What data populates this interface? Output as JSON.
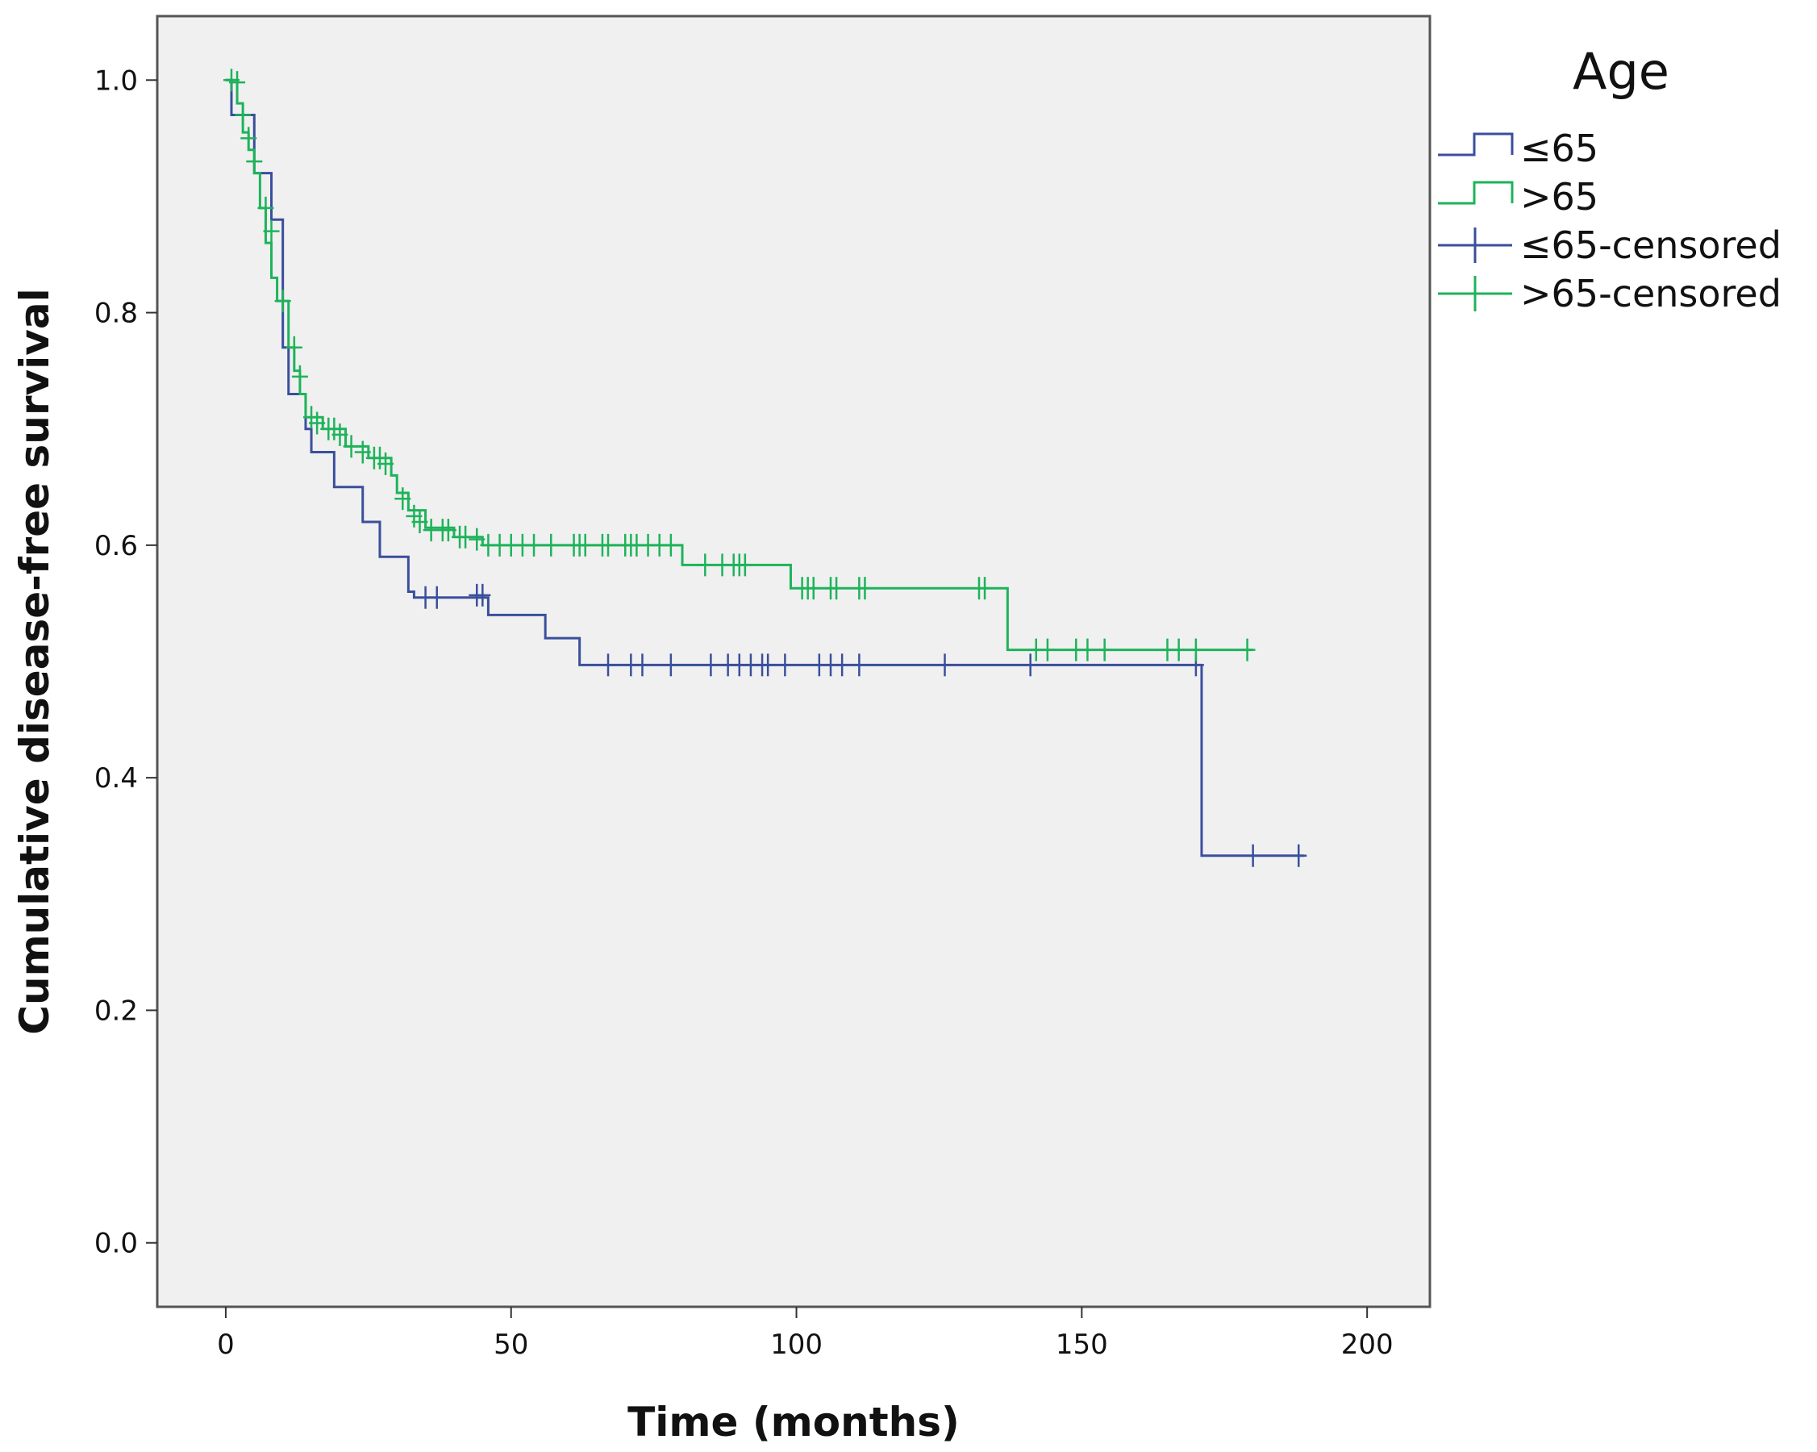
{
  "chart_data": {
    "type": "line",
    "subtype": "kaplan-meier step curves",
    "title": "",
    "xlabel": "Time (months)",
    "ylabel": "Cumulative disease-free survival",
    "xlim": [
      -12,
      211
    ],
    "ylim": [
      -0.055,
      1.055
    ],
    "x_ticks": [
      0,
      50,
      100,
      150,
      200
    ],
    "x_tick_labels": [
      "0",
      "50",
      "100",
      "150",
      "200"
    ],
    "y_ticks": [
      0.0,
      0.2,
      0.4,
      0.6,
      0.8,
      1.0
    ],
    "y_tick_labels": [
      "0.0",
      "0.2",
      "0.4",
      "0.6",
      "0.8",
      "1.0"
    ],
    "grid": false,
    "legend": {
      "title": "Age",
      "position": "right",
      "entries": [
        {
          "label": "≤65",
          "kind": "step",
          "color": "#3a4f9c"
        },
        {
          "label": ">65",
          "kind": "step",
          "color": "#1eb35a"
        },
        {
          "label": "≤65-censored",
          "kind": "censor",
          "color": "#3a4f9c"
        },
        {
          "label": ">65-censored",
          "kind": "censor",
          "color": "#1eb35a"
        }
      ]
    },
    "series": [
      {
        "name": "≤65",
        "color": "#3a4f9c",
        "steps": [
          [
            0,
            1.0
          ],
          [
            1,
            0.97
          ],
          [
            5,
            0.92
          ],
          [
            8,
            0.88
          ],
          [
            10,
            0.77
          ],
          [
            11,
            0.73
          ],
          [
            14,
            0.7
          ],
          [
            15,
            0.68
          ],
          [
            19,
            0.65
          ],
          [
            24,
            0.62
          ],
          [
            27,
            0.59
          ],
          [
            32,
            0.56
          ],
          [
            33,
            0.555
          ],
          [
            46,
            0.54
          ],
          [
            56,
            0.52
          ],
          [
            62,
            0.497
          ],
          [
            171,
            0.333
          ],
          [
            189,
            0.333
          ]
        ],
        "censored": [
          [
            35,
            0.555
          ],
          [
            37,
            0.555
          ],
          [
            44,
            0.557
          ],
          [
            45,
            0.557
          ],
          [
            67,
            0.497
          ],
          [
            71,
            0.497
          ],
          [
            73,
            0.497
          ],
          [
            78,
            0.497
          ],
          [
            85,
            0.497
          ],
          [
            88,
            0.497
          ],
          [
            90,
            0.497
          ],
          [
            92,
            0.497
          ],
          [
            94,
            0.497
          ],
          [
            95,
            0.497
          ],
          [
            98,
            0.497
          ],
          [
            104,
            0.497
          ],
          [
            106,
            0.497
          ],
          [
            108,
            0.497
          ],
          [
            111,
            0.497
          ],
          [
            126,
            0.497
          ],
          [
            141,
            0.497
          ],
          [
            170,
            0.497
          ],
          [
            180,
            0.333
          ],
          [
            188,
            0.333
          ]
        ]
      },
      {
        "name": ">65",
        "color": "#1eb35a",
        "steps": [
          [
            0,
            1.0
          ],
          [
            2,
            0.98
          ],
          [
            3,
            0.955
          ],
          [
            4,
            0.94
          ],
          [
            5,
            0.92
          ],
          [
            6,
            0.89
          ],
          [
            7,
            0.86
          ],
          [
            8,
            0.83
          ],
          [
            9,
            0.81
          ],
          [
            11,
            0.77
          ],
          [
            12,
            0.75
          ],
          [
            13,
            0.73
          ],
          [
            14,
            0.71
          ],
          [
            17,
            0.7
          ],
          [
            21,
            0.685
          ],
          [
            25,
            0.675
          ],
          [
            29,
            0.66
          ],
          [
            30,
            0.645
          ],
          [
            32,
            0.63
          ],
          [
            35,
            0.615
          ],
          [
            40,
            0.607
          ],
          [
            45,
            0.6
          ],
          [
            80,
            0.583
          ],
          [
            99,
            0.563
          ],
          [
            137,
            0.51
          ],
          [
            180,
            0.51
          ]
        ],
        "censored": [
          [
            1,
            1.0
          ],
          [
            2,
            0.998
          ],
          [
            3,
            0.97
          ],
          [
            4,
            0.95
          ],
          [
            5,
            0.93
          ],
          [
            7,
            0.89
          ],
          [
            8,
            0.87
          ],
          [
            10,
            0.81
          ],
          [
            12,
            0.77
          ],
          [
            13,
            0.745
          ],
          [
            15,
            0.71
          ],
          [
            16,
            0.705
          ],
          [
            18,
            0.7
          ],
          [
            19,
            0.7
          ],
          [
            20,
            0.695
          ],
          [
            22,
            0.685
          ],
          [
            24,
            0.68
          ],
          [
            26,
            0.675
          ],
          [
            27,
            0.675
          ],
          [
            28,
            0.67
          ],
          [
            31,
            0.64
          ],
          [
            33,
            0.625
          ],
          [
            34,
            0.62
          ],
          [
            36,
            0.613
          ],
          [
            38,
            0.613
          ],
          [
            39,
            0.613
          ],
          [
            41,
            0.607
          ],
          [
            42,
            0.607
          ],
          [
            44,
            0.605
          ],
          [
            46,
            0.6
          ],
          [
            48,
            0.6
          ],
          [
            50,
            0.6
          ],
          [
            52,
            0.6
          ],
          [
            54,
            0.6
          ],
          [
            57,
            0.6
          ],
          [
            61,
            0.6
          ],
          [
            62,
            0.6
          ],
          [
            63,
            0.6
          ],
          [
            66,
            0.6
          ],
          [
            67,
            0.6
          ],
          [
            70,
            0.6
          ],
          [
            71,
            0.6
          ],
          [
            72,
            0.6
          ],
          [
            74,
            0.6
          ],
          [
            76,
            0.6
          ],
          [
            78,
            0.6
          ],
          [
            84,
            0.583
          ],
          [
            87,
            0.583
          ],
          [
            89,
            0.583
          ],
          [
            90,
            0.583
          ],
          [
            91,
            0.583
          ],
          [
            101,
            0.563
          ],
          [
            102,
            0.563
          ],
          [
            103,
            0.563
          ],
          [
            106,
            0.563
          ],
          [
            107,
            0.563
          ],
          [
            111,
            0.563
          ],
          [
            112,
            0.563
          ],
          [
            132,
            0.563
          ],
          [
            133,
            0.563
          ],
          [
            142,
            0.51
          ],
          [
            144,
            0.51
          ],
          [
            149,
            0.51
          ],
          [
            151,
            0.51
          ],
          [
            154,
            0.51
          ],
          [
            165,
            0.51
          ],
          [
            167,
            0.51
          ],
          [
            170,
            0.51
          ],
          [
            179,
            0.51
          ]
        ]
      }
    ]
  }
}
